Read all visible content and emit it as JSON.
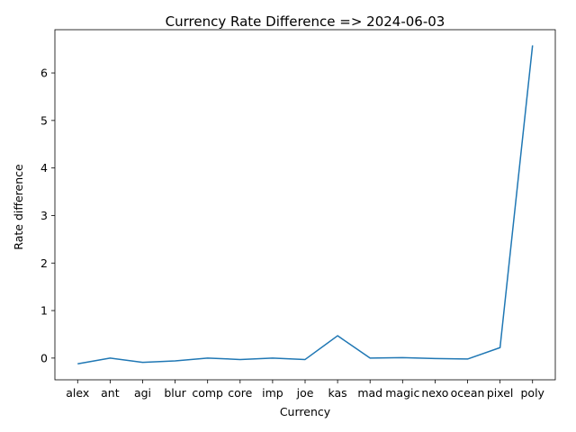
{
  "chart_data": {
    "type": "line",
    "title": "Currency Rate Difference => 2024-06-03",
    "xlabel": "Currency",
    "ylabel": "Rate difference",
    "categories": [
      "alex",
      "ant",
      "agi",
      "blur",
      "comp",
      "core",
      "imp",
      "joe",
      "kas",
      "mad",
      "magic",
      "nexo",
      "ocean",
      "pixel",
      "poly"
    ],
    "values": [
      -0.12,
      0.0,
      -0.09,
      -0.06,
      0.0,
      -0.03,
      0.0,
      -0.03,
      0.47,
      0.0,
      0.01,
      -0.01,
      -0.02,
      0.22,
      6.58
    ],
    "ylim": [
      -0.457,
      6.91
    ],
    "yticks": [
      0,
      1,
      2,
      3,
      4,
      5,
      6
    ],
    "grid": false,
    "line_color": "#1f77b4"
  }
}
